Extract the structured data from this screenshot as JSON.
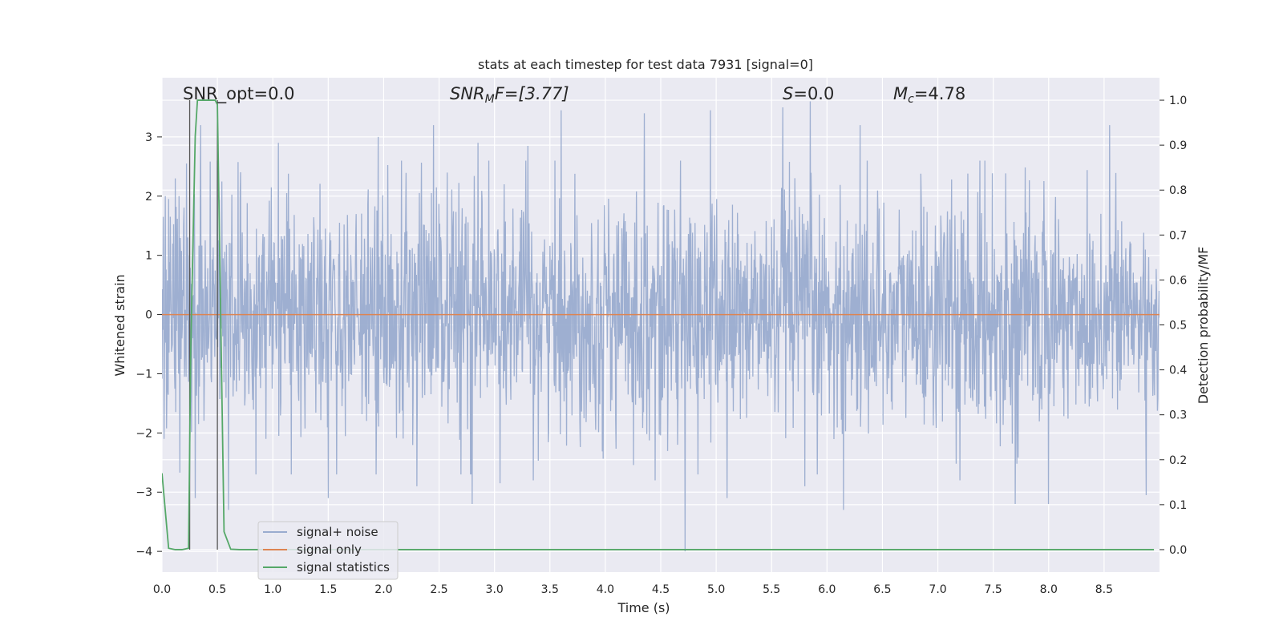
{
  "chart_data": {
    "type": "line",
    "title": "stats at each timestep for test data 7931 [signal=0]",
    "xlabel": "Time (s)",
    "ylabel": "Whitened strain",
    "ylabel_right": "Detection probability/MF",
    "xlim": [
      0.0,
      9.0
    ],
    "ylim": [
      -4.35,
      4.0
    ],
    "ylim_right": [
      -0.05,
      1.05
    ],
    "x_ticks": [
      "0.0",
      "0.5",
      "1.0",
      "1.5",
      "2.0",
      "2.5",
      "3.0",
      "3.5",
      "4.0",
      "4.5",
      "5.0",
      "5.5",
      "6.0",
      "6.5",
      "7.0",
      "7.5",
      "8.0",
      "8.5"
    ],
    "y_ticks": [
      "3",
      "2",
      "1",
      "0",
      "−1",
      "−2",
      "−3",
      "−4"
    ],
    "y_ticks_right": [
      "1.0",
      "0.9",
      "0.8",
      "0.7",
      "0.6",
      "0.5",
      "0.4",
      "0.3",
      "0.2",
      "0.1",
      "0.0"
    ],
    "grid": true,
    "legend_position": "lower-left",
    "annotations": {
      "snr_opt": "SNR_opt=0.0",
      "snr_mf_name": "SNR",
      "snr_mf_sub": "M",
      "snr_mf_rest": "F=[3.77]",
      "s_name": "S",
      "s_rest": "=0.0",
      "mc_name": "M",
      "mc_sub": "c",
      "mc_rest": "=4.78"
    },
    "series": [
      {
        "name": "signal+ noise",
        "color": "#9aaccf",
        "noise_envelope": {
          "typical_band": [
            -1.6,
            1.6
          ],
          "min": -4.0,
          "max": 3.6
        },
        "peaks_high": [
          [
            0.03,
            2.0
          ],
          [
            0.12,
            2.3
          ],
          [
            0.22,
            2.55
          ],
          [
            0.35,
            3.2
          ],
          [
            0.5,
            2.6
          ],
          [
            1.05,
            2.9
          ],
          [
            1.5,
            2.8
          ],
          [
            1.95,
            3.0
          ],
          [
            2.45,
            3.2
          ],
          [
            2.85,
            2.9
          ],
          [
            3.05,
            3.0
          ],
          [
            3.3,
            2.85
          ],
          [
            3.6,
            3.45
          ],
          [
            4.35,
            3.4
          ],
          [
            4.95,
            3.45
          ],
          [
            5.6,
            3.5
          ],
          [
            5.85,
            3.6
          ],
          [
            6.3,
            3.2
          ],
          [
            7.2,
            3.1
          ],
          [
            8.55,
            3.2
          ],
          [
            8.88,
            2.2
          ]
        ],
        "peaks_low": [
          [
            0.02,
            -2.1
          ],
          [
            0.3,
            -3.1
          ],
          [
            0.6,
            -3.3
          ],
          [
            1.5,
            -3.1
          ],
          [
            2.3,
            -2.9
          ],
          [
            2.8,
            -3.2
          ],
          [
            3.05,
            -2.85
          ],
          [
            3.35,
            -2.8
          ],
          [
            4.45,
            -2.8
          ],
          [
            4.72,
            -4.0
          ],
          [
            5.1,
            -3.1
          ],
          [
            5.8,
            -2.9
          ],
          [
            6.15,
            -3.3
          ],
          [
            7.2,
            -2.8
          ],
          [
            7.7,
            -3.2
          ],
          [
            8.0,
            -3.2
          ],
          [
            8.88,
            -3.05
          ]
        ]
      },
      {
        "name": "signal only",
        "color": "#dd8452",
        "x": [
          0.0,
          9.0
        ],
        "y": [
          0.0,
          0.0
        ]
      },
      {
        "name": "signal statistics",
        "color": "#55a868",
        "axis": "right",
        "x": [
          0.0,
          0.06,
          0.12,
          0.18,
          0.24,
          0.26,
          0.3,
          0.32,
          0.36,
          0.42,
          0.48,
          0.5,
          0.56,
          0.62,
          0.7,
          8.95
        ],
        "y": [
          0.17,
          0.003,
          0.0,
          0.0,
          0.003,
          0.45,
          0.92,
          1.0,
          1.0,
          1.0,
          1.0,
          0.99,
          0.04,
          0.001,
          0.0,
          0.0
        ]
      }
    ],
    "markers": {
      "color": "#555555",
      "x": [
        0.25,
        0.5
      ]
    }
  }
}
